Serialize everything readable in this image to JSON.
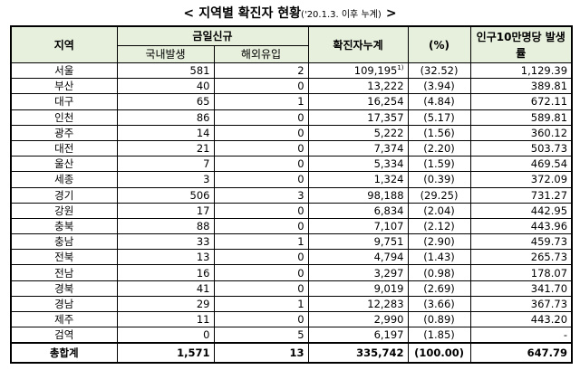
{
  "title": {
    "open": "<",
    "main": "지역별 확진자 현황",
    "sub": "('20.1.3. 이후 누계)",
    "close": ">"
  },
  "headers": {
    "region": "지역",
    "new_today": "금일신규",
    "domestic": "국내발생",
    "overseas": "해외유입",
    "cumulative": "확진자누계",
    "percent": "(%)",
    "rate": "인구10만명당 발생률"
  },
  "rows": [
    {
      "region": "서울",
      "domestic": "581",
      "overseas": "2",
      "cumulative": "109,195",
      "note": "1)",
      "percent": "(32.52)",
      "rate": "1,129.39"
    },
    {
      "region": "부산",
      "domestic": "40",
      "overseas": "0",
      "cumulative": "13,222",
      "note": "",
      "percent": "(3.94)",
      "rate": "389.81"
    },
    {
      "region": "대구",
      "domestic": "65",
      "overseas": "1",
      "cumulative": "16,254",
      "note": "",
      "percent": "(4.84)",
      "rate": "672.11"
    },
    {
      "region": "인천",
      "domestic": "86",
      "overseas": "0",
      "cumulative": "17,357",
      "note": "",
      "percent": "(5.17)",
      "rate": "589.81"
    },
    {
      "region": "광주",
      "domestic": "14",
      "overseas": "0",
      "cumulative": "5,222",
      "note": "",
      "percent": "(1.56)",
      "rate": "360.12"
    },
    {
      "region": "대전",
      "domestic": "21",
      "overseas": "0",
      "cumulative": "7,374",
      "note": "",
      "percent": "(2.20)",
      "rate": "503.73"
    },
    {
      "region": "울산",
      "domestic": "7",
      "overseas": "0",
      "cumulative": "5,334",
      "note": "",
      "percent": "(1.59)",
      "rate": "469.54"
    },
    {
      "region": "세종",
      "domestic": "3",
      "overseas": "0",
      "cumulative": "1,324",
      "note": "",
      "percent": "(0.39)",
      "rate": "372.09"
    },
    {
      "region": "경기",
      "domestic": "506",
      "overseas": "3",
      "cumulative": "98,188",
      "note": "",
      "percent": "(29.25)",
      "rate": "731.27"
    },
    {
      "region": "강원",
      "domestic": "17",
      "overseas": "0",
      "cumulative": "6,834",
      "note": "",
      "percent": "(2.04)",
      "rate": "442.95"
    },
    {
      "region": "충북",
      "domestic": "88",
      "overseas": "0",
      "cumulative": "7,107",
      "note": "",
      "percent": "(2.12)",
      "rate": "443.96"
    },
    {
      "region": "충남",
      "domestic": "33",
      "overseas": "1",
      "cumulative": "9,751",
      "note": "",
      "percent": "(2.90)",
      "rate": "459.73"
    },
    {
      "region": "전북",
      "domestic": "13",
      "overseas": "0",
      "cumulative": "4,794",
      "note": "",
      "percent": "(1.43)",
      "rate": "265.73"
    },
    {
      "region": "전남",
      "domestic": "16",
      "overseas": "0",
      "cumulative": "3,297",
      "note": "",
      "percent": "(0.98)",
      "rate": "178.07"
    },
    {
      "region": "경북",
      "domestic": "41",
      "overseas": "0",
      "cumulative": "9,019",
      "note": "",
      "percent": "(2.69)",
      "rate": "341.70"
    },
    {
      "region": "경남",
      "domestic": "29",
      "overseas": "1",
      "cumulative": "12,283",
      "note": "",
      "percent": "(3.66)",
      "rate": "367.73"
    },
    {
      "region": "제주",
      "domestic": "11",
      "overseas": "0",
      "cumulative": "2,990",
      "note": "",
      "percent": "(0.89)",
      "rate": "443.20"
    },
    {
      "region": "검역",
      "domestic": "0",
      "overseas": "5",
      "cumulative": "6,197",
      "note": "",
      "percent": "(1.85)",
      "rate": "-"
    }
  ],
  "total": {
    "region": "총합계",
    "domestic": "1,571",
    "overseas": "13",
    "cumulative": "335,742",
    "percent": "(100.00)",
    "rate": "647.79"
  },
  "colors": {
    "header_bg": "#e7f0dc",
    "border": "#000000"
  }
}
